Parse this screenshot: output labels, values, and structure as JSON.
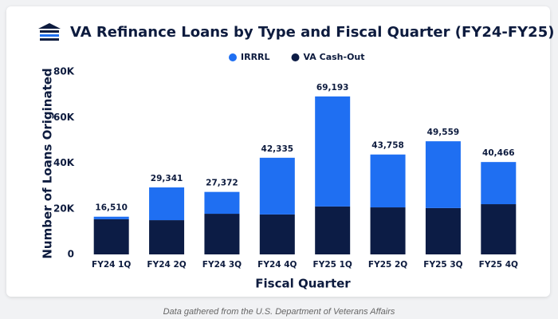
{
  "chart_data": {
    "type": "stacked-bar",
    "title": "VA Refinance Loans by Type and Fiscal Quarter (FY24-FY25)",
    "x_label": "Fiscal Quarter",
    "y_label": "Number of Loans Originated",
    "source": "Data gathered from the U.S. Department of Veterans Affairs",
    "categories": [
      "FY24 1Q",
      "FY24 2Q",
      "FY24 3Q",
      "FY24 4Q",
      "FY25 1Q",
      "FY25 2Q",
      "FY25 3Q",
      "FY25 4Q"
    ],
    "series": [
      {
        "name": "VA Cash-Out",
        "color": "#0c1c45",
        "values": [
          15400,
          15000,
          17800,
          17500,
          21000,
          20600,
          20300,
          22000
        ]
      },
      {
        "name": "IRRRL",
        "color": "#1f6ff2",
        "values": [
          1110,
          14341,
          9572,
          24835,
          48193,
          23158,
          29259,
          18466
        ]
      }
    ],
    "totals": {
      "values": [
        16510,
        29341,
        27372,
        42335,
        69193,
        43758,
        49559,
        40466
      ],
      "value_labels": [
        "16,510",
        "29,341",
        "27,372",
        "42,335",
        "69,193",
        "43,758",
        "49,559",
        "40,466"
      ]
    },
    "ylim": [
      0,
      80000
    ],
    "yticks": [
      0,
      {
        "value": 20000,
        "label": "20K"
      },
      {
        "value": 40000,
        "label": "40K"
      },
      {
        "value": 60000,
        "label": "60K"
      },
      {
        "value": 80000,
        "label": "80K"
      }
    ],
    "grid": false
  }
}
